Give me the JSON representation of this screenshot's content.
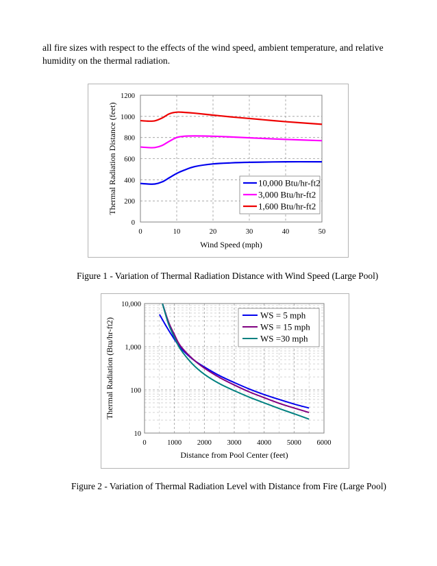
{
  "intro_text": "all fire sizes with respect to the effects of the wind speed, ambient temperature, and relative humidity on the thermal radiation.",
  "figure1": {
    "caption": "Figure 1 - Variation of Thermal Radiation Distance with Wind Speed (Large Pool)"
  },
  "figure2": {
    "caption": "Figure 2 - Variation of Thermal Radiation Level with Distance from Fire (Large Pool)"
  },
  "chart_data": [
    {
      "type": "line",
      "title": "",
      "xlabel": "Wind Speed (mph)",
      "ylabel": "Thermal Radiation Distance (feet)",
      "xlim": [
        0,
        50
      ],
      "ylim": [
        0,
        1200
      ],
      "xticks": [
        0,
        10,
        20,
        30,
        40,
        50
      ],
      "yticks": [
        0,
        200,
        400,
        600,
        800,
        1000,
        1200
      ],
      "grid": true,
      "legend_position": "bottom-right",
      "series": [
        {
          "name": "10,000 Btu/hr-ft2",
          "color": "#0000ee",
          "x": [
            0,
            2,
            4,
            6,
            8,
            10,
            12,
            15,
            20,
            25,
            30,
            40,
            50
          ],
          "y": [
            365,
            360,
            360,
            380,
            420,
            460,
            490,
            525,
            550,
            560,
            565,
            570,
            570
          ]
        },
        {
          "name": "3,000 Btu/hr-ft2",
          "color": "#ff00ff",
          "x": [
            0,
            2,
            4,
            6,
            8,
            10,
            12,
            15,
            20,
            25,
            30,
            40,
            50
          ],
          "y": [
            710,
            705,
            705,
            725,
            765,
            800,
            812,
            815,
            812,
            805,
            797,
            782,
            770
          ]
        },
        {
          "name": "1,600 Btu/hr-ft2",
          "color": "#ee0000",
          "x": [
            0,
            2,
            4,
            6,
            8,
            10,
            12,
            15,
            20,
            25,
            30,
            40,
            50
          ],
          "y": [
            960,
            955,
            958,
            985,
            1025,
            1040,
            1038,
            1030,
            1012,
            995,
            980,
            950,
            925
          ]
        }
      ]
    },
    {
      "type": "line",
      "title": "",
      "xlabel": "Distance from Pool Center (feet)",
      "ylabel": "Thermal Radiation (Btu/hr-ft2)",
      "xlim": [
        0,
        6000
      ],
      "ylim": [
        10,
        10000
      ],
      "yscale": "log",
      "xticks": [
        0,
        1000,
        2000,
        3000,
        4000,
        5000,
        6000
      ],
      "ytick_labels": [
        "10",
        "100",
        "1,000",
        "10,000"
      ],
      "yticks": [
        10,
        100,
        1000,
        10000
      ],
      "grid": true,
      "legend_position": "top-right",
      "series": [
        {
          "name": "WS = 5 mph",
          "color": "#0000ee",
          "x": [
            500,
            700,
            900,
            1200,
            1600,
            2000,
            2500,
            3000,
            3500,
            4000,
            4500,
            5000,
            5500
          ],
          "y": [
            5600,
            3200,
            1900,
            950,
            520,
            340,
            215,
            148,
            105,
            78,
            60,
            47,
            38
          ]
        },
        {
          "name": "WS = 15 mph",
          "color": "#800080",
          "x": [
            600,
            800,
            1000,
            1200,
            1600,
            2000,
            2500,
            3000,
            3500,
            4000,
            4500,
            5000,
            5500
          ],
          "y": [
            10000,
            3800,
            1900,
            1050,
            530,
            320,
            195,
            130,
            90,
            66,
            49,
            38,
            30
          ]
        },
        {
          "name": "WS =30 mph",
          "color": "#008080",
          "x": [
            600,
            800,
            1000,
            1200,
            1600,
            2000,
            2500,
            3000,
            3500,
            4000,
            4500,
            5000,
            5500
          ],
          "y": [
            10000,
            3400,
            1650,
            880,
            400,
            230,
            140,
            96,
            68,
            50,
            37,
            28,
            21
          ]
        }
      ]
    }
  ]
}
